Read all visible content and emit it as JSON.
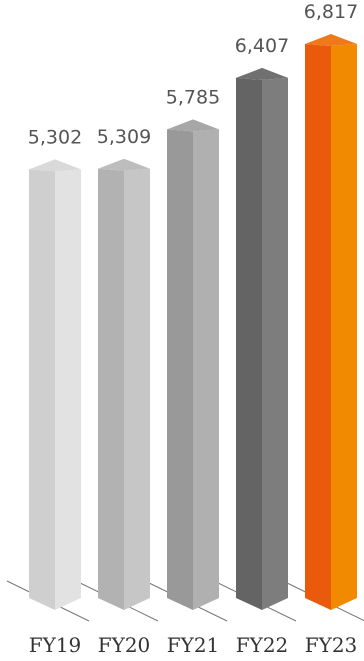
{
  "chart_data": {
    "type": "bar",
    "title": "",
    "xlabel": "",
    "ylabel": "",
    "categories": [
      "FY19",
      "FY20",
      "FY21",
      "FY22",
      "FY23"
    ],
    "values": [
      5302,
      5309,
      5785,
      6407,
      6817
    ],
    "value_labels": [
      "5,302",
      "5,309",
      "5,785",
      "6,407",
      "6,817"
    ],
    "ylim": [
      0,
      6817
    ],
    "grid": false,
    "legend": "none",
    "colors": [
      {
        "left": "#cfcfcf",
        "right": "#e2e2e2",
        "top": "#d9d9d9"
      },
      {
        "left": "#b2b2b2",
        "right": "#c6c6c6",
        "top": "#bdbdbd"
      },
      {
        "left": "#999999",
        "right": "#b0b0b0",
        "top": "#a7a7a7"
      },
      {
        "left": "#646464",
        "right": "#7d7d7d",
        "top": "#707070"
      },
      {
        "left": "#ea5a0c",
        "right": "#f28a00",
        "top": "#f07a1a"
      }
    ],
    "baseline_color": "#777777"
  }
}
